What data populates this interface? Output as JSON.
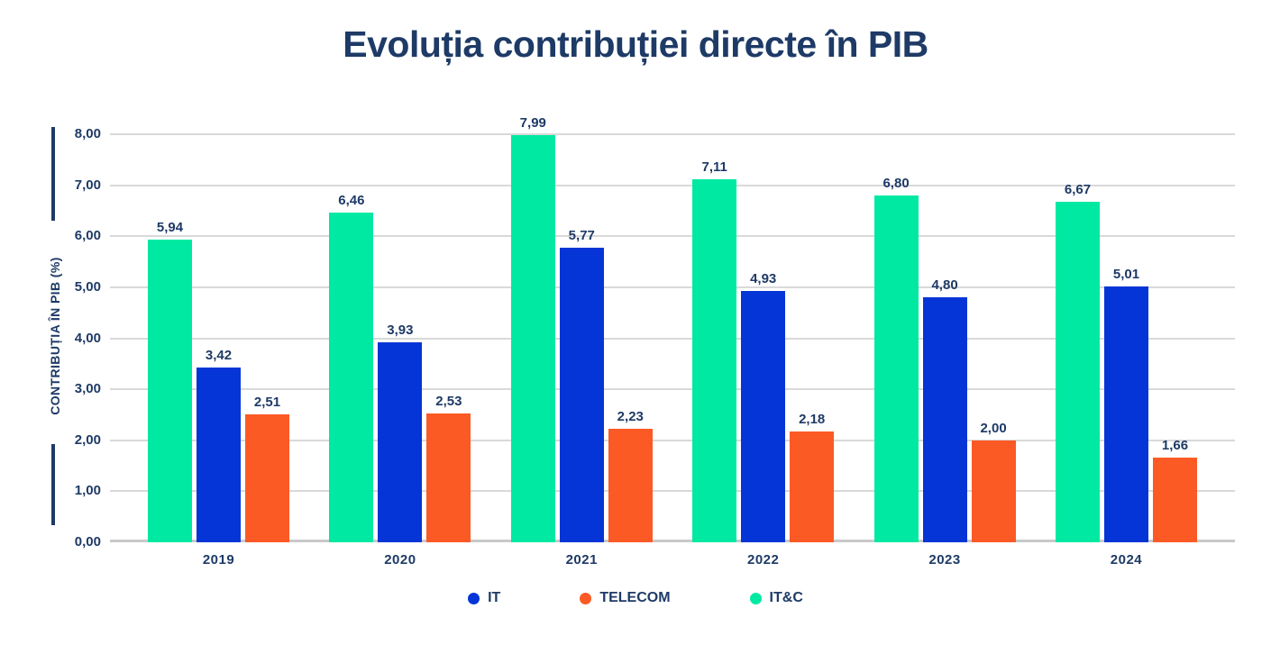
{
  "title": "Evoluția contribuției directe în PIB",
  "y_axis_label": "CONTRIBUȚIA ÎN PIB (%)",
  "colors": {
    "it_blue": "#0535d6",
    "telecom_orange": "#fb5a25",
    "itc_green": "#00e9a2",
    "navy_text": "#1e3a66",
    "gridline": "#d9d9d9",
    "baseline": "#c9c9c9"
  },
  "chart_data": {
    "type": "bar",
    "title": "Evoluția contribuției directe în PIB",
    "xlabel": "",
    "ylabel": "CONTRIBUȚIA ÎN PIB (%)",
    "ylim": [
      0,
      8
    ],
    "grid": true,
    "legend_position": "bottom",
    "categories": [
      "2019",
      "2020",
      "2021",
      "2022",
      "2023",
      "2024"
    ],
    "y_ticks": [
      "8,00",
      "7,00",
      "6,00",
      "5,00",
      "4,00",
      "3,00",
      "2,00",
      "1,00",
      "0,00"
    ],
    "series": [
      {
        "name": "IT&C",
        "color_key": "itc_green",
        "values": [
          5.94,
          6.46,
          7.99,
          7.11,
          6.8,
          6.67
        ],
        "labels": [
          "5,94",
          "6,46",
          "7,99",
          "7,11",
          "6,80",
          "6,67"
        ]
      },
      {
        "name": "IT",
        "color_key": "it_blue",
        "values": [
          3.42,
          3.93,
          5.77,
          4.93,
          4.8,
          5.01
        ],
        "labels": [
          "3,42",
          "3,93",
          "5,77",
          "4,93",
          "4,80",
          "5,01"
        ]
      },
      {
        "name": "TELECOM",
        "color_key": "telecom_orange",
        "values": [
          2.51,
          2.53,
          2.23,
          2.18,
          2.0,
          1.66
        ],
        "labels": [
          "2,51",
          "2,53",
          "2,23",
          "2,18",
          "2,00",
          "1,66"
        ]
      }
    ],
    "legend": [
      {
        "label": "IT",
        "color_key": "it_blue"
      },
      {
        "label": "TELECOM",
        "color_key": "telecom_orange"
      },
      {
        "label": "IT&C",
        "color_key": "itc_green"
      }
    ]
  }
}
